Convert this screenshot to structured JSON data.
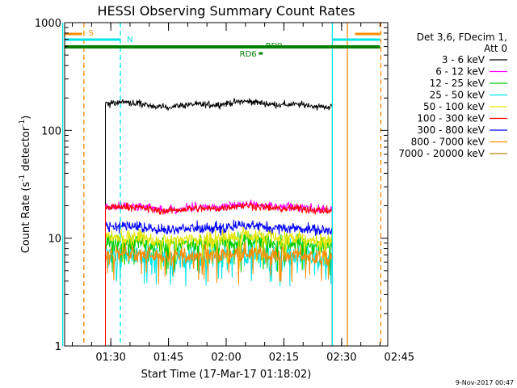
{
  "chart_data": {
    "type": "line",
    "title": "HESSI Observing Summary Count Rates",
    "xlabel": "Start Time (17-Mar-17 01:18:02)",
    "ylabel_main": "Count Rate (s",
    "ylabel_sup1": "-1",
    "ylabel_mid": " detector",
    "ylabel_sup2": "-1",
    "ylabel_end": ")",
    "y_scale": "log",
    "ylim": [
      1,
      1000
    ],
    "y_ticks": [
      {
        "value": 1,
        "label": "1"
      },
      {
        "value": 10,
        "label": "10"
      },
      {
        "value": 100,
        "label": "100"
      },
      {
        "value": 1000,
        "label": "1000"
      }
    ],
    "x_units": "minutes from 01:18:02",
    "xlim": [
      0,
      84
    ],
    "x_ticks": [
      {
        "value": 12,
        "label": "01:30"
      },
      {
        "value": 27,
        "label": "01:45"
      },
      {
        "value": 42,
        "label": "02:00"
      },
      {
        "value": 57,
        "label": "02:15"
      },
      {
        "value": 72,
        "label": "02:30"
      },
      {
        "value": 87,
        "label": "02:45"
      }
    ],
    "legend": {
      "position": "right",
      "header1": "Det 3,6, FDecim 1,",
      "header2": "Att 0",
      "entries": [
        {
          "label": "3 - 6 keV",
          "color": "#000000"
        },
        {
          "label": "6 - 12 keV",
          "color": "#ff00ff"
        },
        {
          "label": "12 - 25 keV",
          "color": "#00cc00"
        },
        {
          "label": "25 - 50 keV",
          "color": "#00e5e5"
        },
        {
          "label": "50 - 100 keV",
          "color": "#e5e500"
        },
        {
          "label": "100 - 300 keV",
          "color": "#ff0000"
        },
        {
          "label": "300 - 800 keV",
          "color": "#0000ff"
        },
        {
          "label": "800 - 7000 keV",
          "color": "#ff8c00"
        },
        {
          "label": "7000 - 20000 keV",
          "color": "#b8860b"
        }
      ]
    },
    "data_interval": [
      10.6,
      69.6
    ],
    "series": [
      {
        "name": "3 - 6 keV",
        "color": "#000000",
        "level": 175,
        "spread": 0.03,
        "zorder": 0
      },
      {
        "name": "6 - 12 keV",
        "color": "#ff00ff",
        "level": 19.5,
        "spread": 0.04,
        "zorder": 1
      },
      {
        "name": "25 - 50 keV",
        "color": "#00e5e5",
        "level": 6.8,
        "spread": 0.12,
        "zorder": 2
      },
      {
        "name": "12 - 25 keV",
        "color": "#00cc00",
        "level": 9.0,
        "spread": 0.08,
        "zorder": 3
      },
      {
        "name": "50 - 100 keV",
        "color": "#e5e500",
        "level": 10.0,
        "spread": 0.07,
        "zorder": 4
      },
      {
        "name": "800 - 7000 keV",
        "color": "#ff8c00",
        "level": 7.0,
        "spread": 0.08,
        "zorder": 5
      },
      {
        "name": "300 - 800 keV",
        "color": "#0000ff",
        "level": 12.5,
        "spread": 0.05,
        "zorder": 6
      },
      {
        "name": "100 - 300 keV",
        "color": "#ff0000",
        "level": 19.0,
        "spread": 0.035,
        "zorder": 7
      }
    ],
    "flags": [
      {
        "label": "S",
        "color": "#ff8c00",
        "segments": [
          [
            -5,
            4.5
          ],
          [
            75.5,
            82
          ]
        ]
      },
      {
        "label": "N",
        "color": "#00e5e5",
        "segments": [
          [
            -5,
            14.5
          ],
          [
            69.6,
            82
          ]
        ]
      },
      {
        "label": "RD0",
        "color": "#008000",
        "segments": [
          [
            -5,
            82
          ]
        ]
      },
      {
        "label": "RD6",
        "color": "#008000",
        "segments": [
          [
            50.5,
            51.5
          ]
        ]
      }
    ],
    "vlines": [
      {
        "x": 5,
        "color": "#ff8c00",
        "style": "dashed"
      },
      {
        "x": 14.5,
        "color": "#00e5e5",
        "style": "dashed"
      },
      {
        "x": 69.6,
        "color": "#00e5e5",
        "style": "solid"
      },
      {
        "x": 73.5,
        "color": "#ff8c00",
        "style": "solid"
      },
      {
        "x": 82.2,
        "color": "#ff8c00",
        "style": "dashed"
      },
      {
        "x": -0.5,
        "color": "#00e5e5",
        "style": "solid"
      }
    ],
    "grid": false
  },
  "footer": {
    "date_stamp": "9-Nov-2017 00:47"
  }
}
